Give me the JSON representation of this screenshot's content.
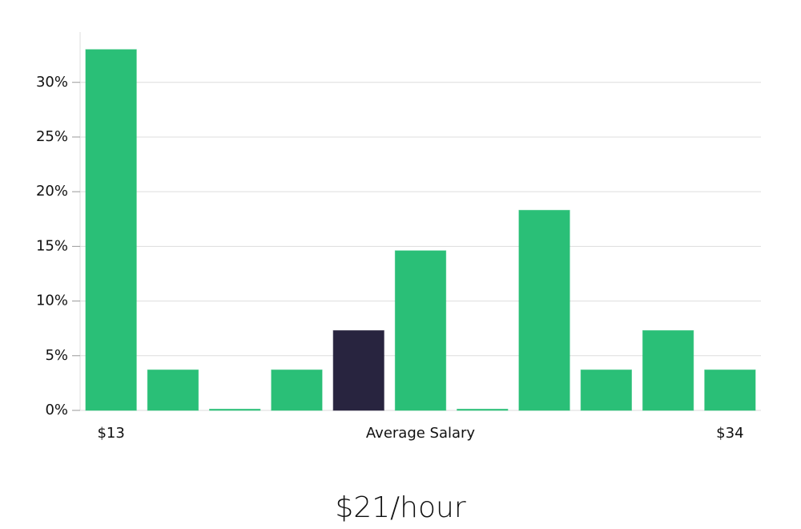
{
  "chart_data": {
    "type": "bar",
    "categories": [
      "$13",
      null,
      null,
      null,
      null,
      null,
      null,
      null,
      null,
      null,
      "$34"
    ],
    "values": [
      33,
      3.7,
      0,
      3.7,
      7.3,
      14.6,
      0,
      18.3,
      3.7,
      7.3,
      3.7
    ],
    "colors": [
      "#2abf77",
      "#2abf77",
      "#2abf77",
      "#2abf77",
      "#28243f",
      "#2abf77",
      "#2abf77",
      "#2abf77",
      "#2abf77",
      "#2abf77",
      "#2abf77"
    ],
    "x_label": "Average Salary",
    "annotation": "$21/hour",
    "ylim": [
      0,
      34.6
    ],
    "yticks": [
      {
        "value": 0,
        "label": "0%"
      },
      {
        "value": 5,
        "label": "5%"
      },
      {
        "value": 10,
        "label": "10%"
      },
      {
        "value": 15,
        "label": "15%"
      },
      {
        "value": 20,
        "label": "20%"
      },
      {
        "value": 25,
        "label": "25%"
      },
      {
        "value": 30,
        "label": "30%"
      }
    ],
    "grid": true
  }
}
